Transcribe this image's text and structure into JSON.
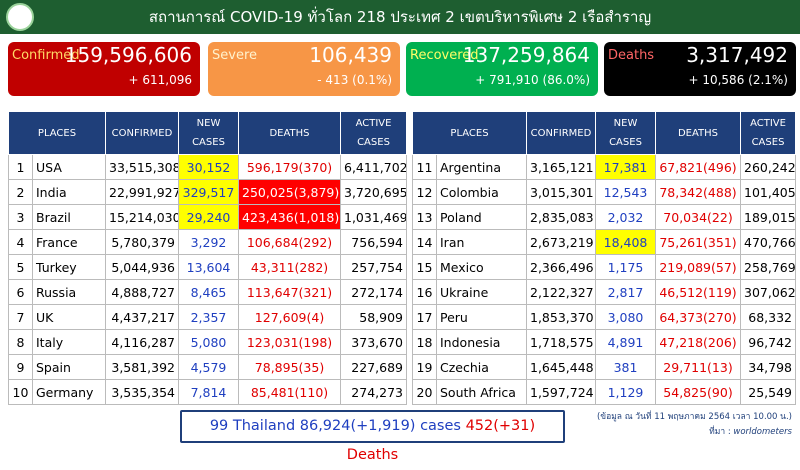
{
  "header": {
    "title": "สถานการณ์ COVID-19 ทั่วโลก 218 ประเทศ 2 เขตบริหารพิเศษ 2 เรือสำราญ"
  },
  "cards": [
    {
      "label": "Confirmed",
      "value": "159,596,606",
      "change": "+ 611,096",
      "color": "#c00000",
      "label_color": "#ffd966"
    },
    {
      "label": "Severe",
      "value": "106,439",
      "change": "- 413 (0.1%)",
      "color": "#f79646",
      "label_color": "#fff2cc"
    },
    {
      "label": "Recovered",
      "value": "137,259,864",
      "change": "+ 791,910 (86.0%)",
      "color": "#00b050",
      "label_color": "#ffff66"
    },
    {
      "label": "Deaths",
      "value": "3,317,492",
      "change": "+ 10,586 (2.1%)",
      "color": "#000000",
      "label_color": "#ff6666"
    }
  ],
  "tables": [
    {
      "headers": [
        "PLACES",
        "CONFIRMED",
        "NEW CASES",
        "DEATHS",
        "ACTIVE CASES"
      ],
      "rows": [
        {
          "cells": [
            "1",
            "USA",
            "33,515,308",
            "30,152",
            "596,179(370)",
            "6,411,702"
          ],
          "new_bg": "#ffff00"
        },
        {
          "cells": [
            "2",
            "India",
            "22,991,927",
            "329,517",
            "250,025(3,879)",
            "3,720,695"
          ],
          "new_bg": "#ffff00",
          "deaths_bg": "#ff0000"
        },
        {
          "cells": [
            "3",
            "Brazil",
            "15,214,030",
            "29,240",
            "423,436(1,018)",
            "1,031,469"
          ],
          "new_bg": "#ffff00",
          "deaths_bg": "#ff0000"
        },
        {
          "cells": [
            "4",
            "France",
            "5,780,379",
            "3,292",
            "106,684(292)",
            "756,594"
          ]
        },
        {
          "cells": [
            "5",
            "Turkey",
            "5,044,936",
            "13,604",
            "43,311(282)",
            "257,754"
          ]
        },
        {
          "cells": [
            "6",
            "Russia",
            "4,888,727",
            "8,465",
            "113,647(321)",
            "272,174"
          ]
        },
        {
          "cells": [
            "7",
            "UK",
            "4,437,217",
            "2,357",
            "127,609(4)",
            "58,909"
          ]
        },
        {
          "cells": [
            "8",
            "Italy",
            "4,116,287",
            "5,080",
            "123,031(198)",
            "373,670"
          ]
        },
        {
          "cells": [
            "9",
            "Spain",
            "3,581,392",
            "4,579",
            "78,895(35)",
            "227,689"
          ]
        },
        {
          "cells": [
            "10",
            "Germany",
            "3,535,354",
            "7,814",
            "85,481(110)",
            "274,273"
          ]
        }
      ]
    },
    {
      "headers": [
        "PLACES",
        "CONFIRMED",
        "NEW CASES",
        "DEATHS",
        "ACTIVE CASES"
      ],
      "rows": [
        {
          "cells": [
            "11",
            "Argentina",
            "3,165,121",
            "17,381",
            "67,821(496)",
            "260,242"
          ],
          "new_bg": "#ffff00"
        },
        {
          "cells": [
            "12",
            "Colombia",
            "3,015,301",
            "12,543",
            "78,342(488)",
            "101,405"
          ]
        },
        {
          "cells": [
            "13",
            "Poland",
            "2,835,083",
            "2,032",
            "70,034(22)",
            "189,015"
          ]
        },
        {
          "cells": [
            "14",
            "Iran",
            "2,673,219",
            "18,408",
            "75,261(351)",
            "470,766"
          ],
          "new_bg": "#ffff00"
        },
        {
          "cells": [
            "15",
            "Mexico",
            "2,366,496",
            "1,175",
            "219,089(57)",
            "258,769"
          ]
        },
        {
          "cells": [
            "16",
            "Ukraine",
            "2,122,327",
            "2,817",
            "46,512(119)",
            "307,062"
          ]
        },
        {
          "cells": [
            "17",
            "Peru",
            "1,853,370",
            "3,080",
            "64,373(270)",
            "68,332"
          ]
        },
        {
          "cells": [
            "18",
            "Indonesia",
            "1,718,575",
            "4,891",
            "47,218(206)",
            "96,742"
          ]
        },
        {
          "cells": [
            "19",
            "Czechia",
            "1,645,448",
            "381",
            "29,711(13)",
            "34,798"
          ]
        },
        {
          "cells": [
            "20",
            "South Africa",
            "1,597,724",
            "1,129",
            "54,825(90)",
            "25,549"
          ]
        }
      ]
    }
  ],
  "footer": {
    "thailand": "99 Thailand 86,924(+1,919) cases",
    "deaths": "452(+31) Deaths"
  },
  "note": {
    "date": "(ข้อมูล ณ วันที่ 11 พฤษภาคม 2564 เวลา 10.00 น.)",
    "source_label": "ที่มา :",
    "source": "worldometers"
  }
}
